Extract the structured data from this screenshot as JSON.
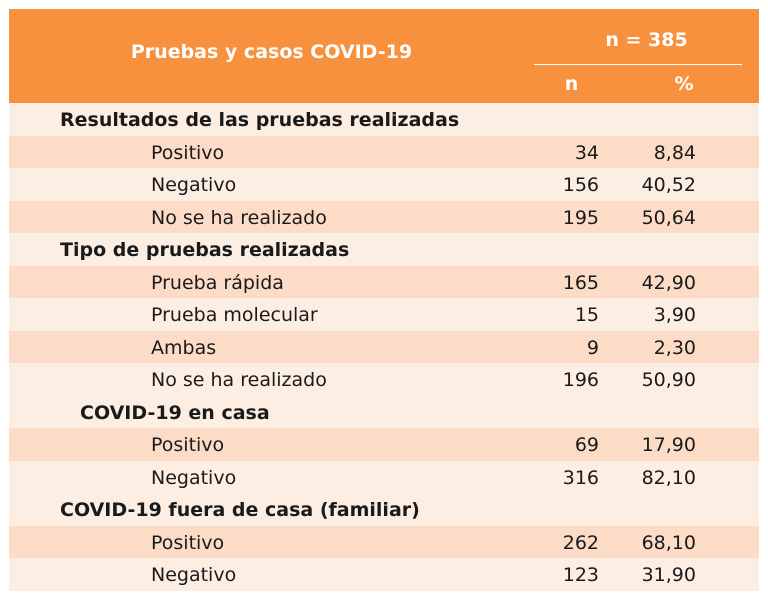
{
  "header": {
    "title": "Pruebas y casos COVID-19",
    "n_total": "n = 385",
    "col_n": "n",
    "col_pct": "%"
  },
  "sections": [
    {
      "title": "Resultados de las pruebas realizadas",
      "items": [
        {
          "label": "Positivo",
          "n": "34",
          "pct": "8,84"
        },
        {
          "label": "Negativo",
          "n": "156",
          "pct": "40,52"
        },
        {
          "label": "No se ha realizado",
          "n": "195",
          "pct": "50,64"
        }
      ]
    },
    {
      "title": "Tipo de pruebas realizadas",
      "items": [
        {
          "label": "Prueba rápida",
          "n": "165",
          "pct": "42,90"
        },
        {
          "label": "Prueba molecular",
          "n": "15",
          "pct": "3,90"
        },
        {
          "label": "Ambas",
          "n": "9",
          "pct": "2,30"
        },
        {
          "label": "No se ha realizado",
          "n": "196",
          "pct": "50,90"
        }
      ]
    },
    {
      "title": "COVID-19 en casa",
      "items": [
        {
          "label": "Positivo",
          "n": "69",
          "pct": "17,90"
        },
        {
          "label": "Negativo",
          "n": "316",
          "pct": "82,10"
        }
      ]
    },
    {
      "title": "COVID-19 fuera de casa (familiar)",
      "items": [
        {
          "label": "Positivo",
          "n": "262",
          "pct": "68,10"
        },
        {
          "label": "Negativo",
          "n": "123",
          "pct": "31,90"
        }
      ]
    }
  ]
}
